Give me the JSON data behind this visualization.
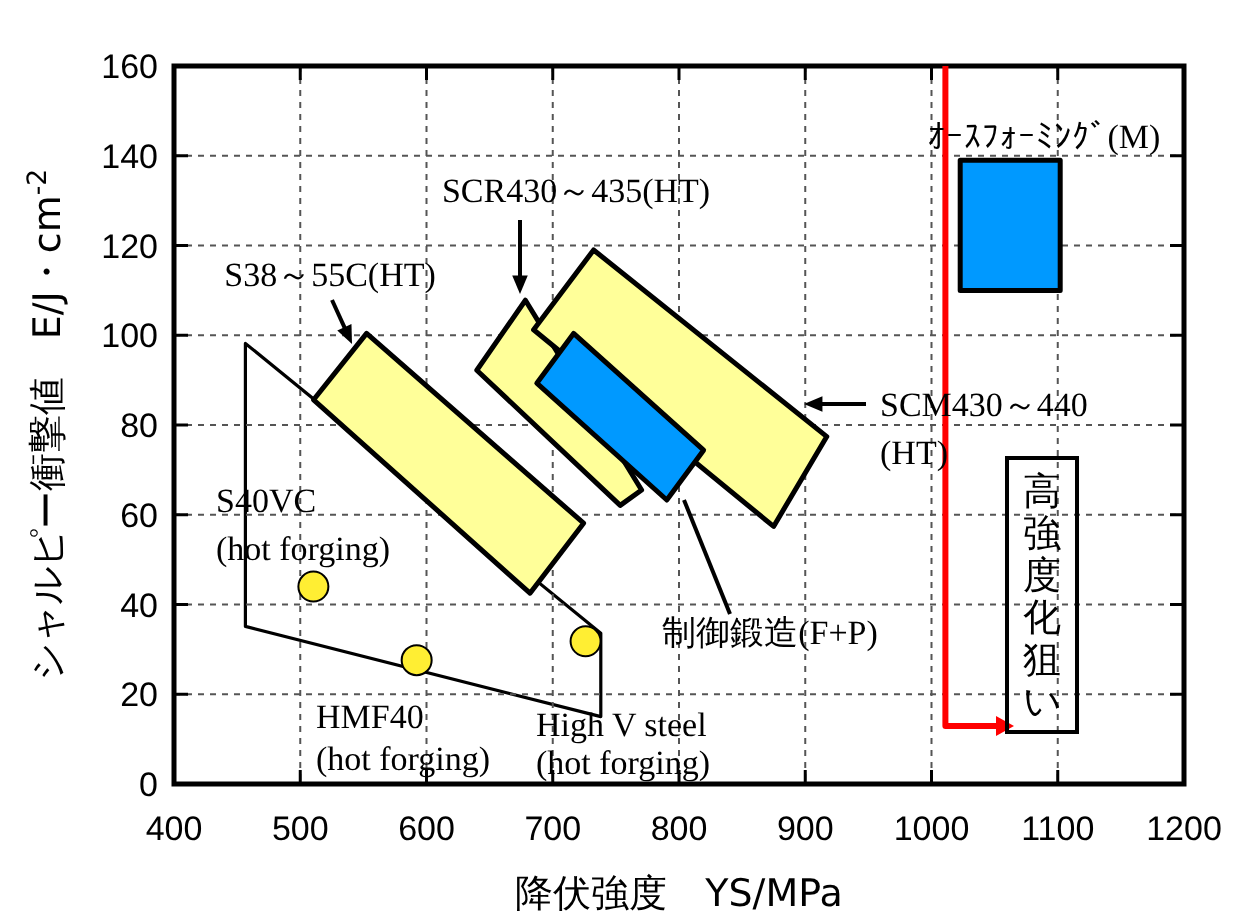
{
  "chart_data": {
    "type": "scatter",
    "xlabel": "降伏強度　YS/MPa",
    "ylabel": "シャルピー衝撃値　E/J・cm$^{-2}$",
    "xlim": [
      400,
      1200
    ],
    "ylim": [
      0,
      160
    ],
    "xticks": [
      400,
      500,
      600,
      700,
      800,
      900,
      1000,
      1100,
      1200
    ],
    "yticks": [
      0,
      20,
      40,
      60,
      80,
      100,
      120,
      140,
      160
    ],
    "grid": true,
    "series": [
      {
        "type": "area",
        "color": "#ffff99",
        "x": [
          552.6,
          724.4,
          682,
          510.5,
          552.6
        ],
        "values": [
          100.4,
          58.1,
          42.5,
          85.6,
          100.4
        ]
      },
      {
        "type": "area",
        "color": "#ffff99",
        "x": [
          678.4,
          770.4,
          753.4,
          639.8,
          678.4
        ],
        "values": [
          107.8,
          65.5,
          62.1,
          92.2,
          107.8
        ]
      },
      {
        "type": "area",
        "color": "#ffff99",
        "x": [
          732.3,
          917.1,
          875,
          684.8,
          732.3
        ],
        "values": [
          119,
          77.4,
          57.4,
          101.2,
          119
        ]
      },
      {
        "type": "area",
        "color": "#0099ff",
        "x": [
          716.5,
          819.5,
          790.4,
          687.3,
          716.5
        ],
        "values": [
          100.4,
          74.4,
          63.3,
          89.3,
          100.4
        ]
      },
      {
        "type": "area",
        "color": "#0099ff",
        "x": [
          1022.8,
          1102,
          1102,
          1022.8,
          1022.8
        ],
        "values": [
          139,
          139,
          110,
          110,
          139
        ]
      },
      {
        "type": "area",
        "color": "#ffffff",
        "x": [
          456.6,
          738,
          738,
          456.6,
          456.6
        ],
        "values": [
          98.2,
          33.6,
          15,
          35.1,
          98.2
        ]
      },
      {
        "color": "#ffee33",
        "marker": "circle",
        "x": [
          510.4,
          592.2,
          726
        ],
        "values": [
          44,
          27.6,
          31.8
        ]
      }
    ],
    "annotations": [
      "S38～55C(HT)",
      "SCR430～435(HT)",
      "SCM430～440\n(HT)",
      "制御鍛造(F+P)",
      "ｵｰｽﾌｫｰﾐﾝｸﾞ(M)",
      "S40VC\n(hot forging)",
      "HMF40\n(hot forging)",
      "High V steel\n(hot forging)",
      "高強度化狙い"
    ]
  }
}
